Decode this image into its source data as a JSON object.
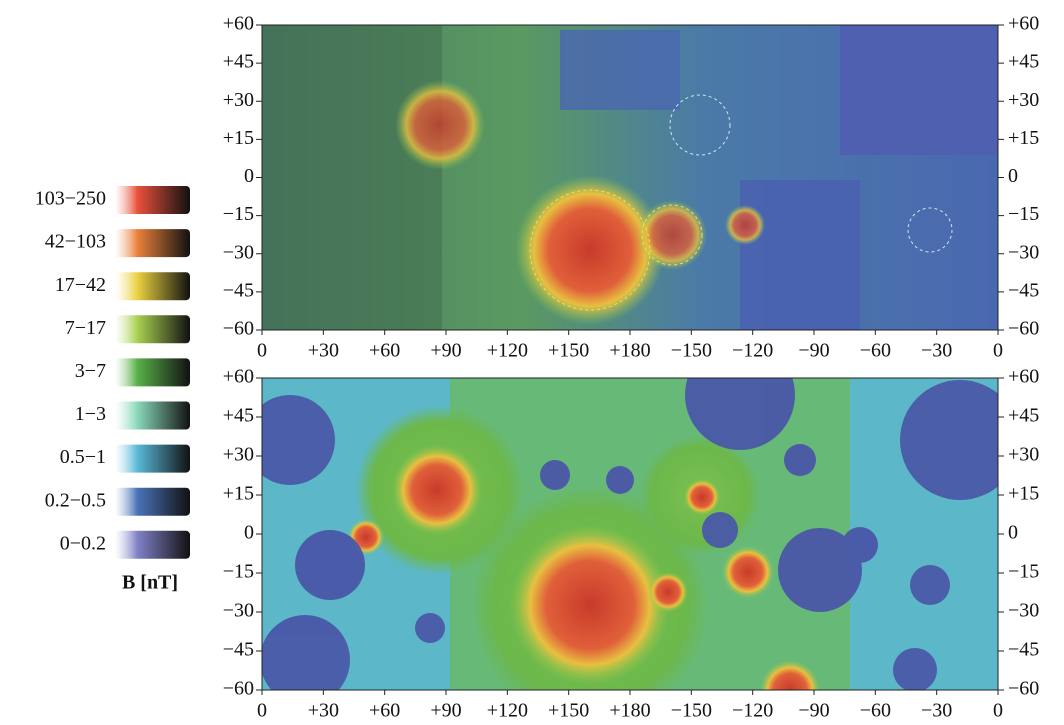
{
  "legend": {
    "title": "B [nT]",
    "items": [
      "103−250",
      "42−103",
      "17−42",
      "7−17",
      "3−7",
      "1−3",
      "0.5−1",
      "0.2−0.5",
      "0−0.2"
    ]
  },
  "axes": {
    "lat_ticks": [
      "+60",
      "+45",
      "+30",
      "+15",
      "0",
      "−15",
      "−30",
      "−45",
      "−60"
    ],
    "lon_ticks": [
      "0",
      "+30",
      "+60",
      "+90",
      "+120",
      "+150",
      "+180",
      "−150",
      "−120",
      "−90",
      "−60",
      "−30",
      "0"
    ]
  }
}
